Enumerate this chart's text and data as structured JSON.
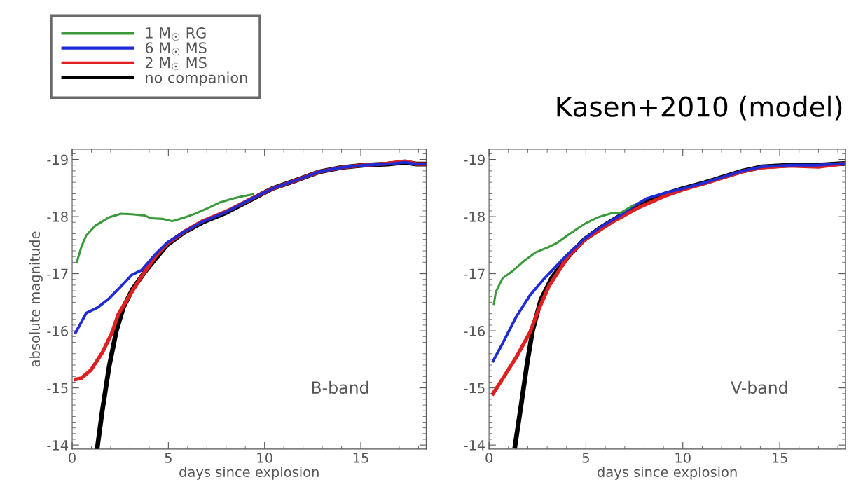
{
  "chart_data": [
    {
      "type": "line",
      "xlabel": "days since explosion",
      "ylabel": "absolute magnitude",
      "annotations": [
        "B-band"
      ],
      "xlim": [
        0,
        18.4
      ],
      "ylim": [
        -13.93,
        -19.18
      ],
      "xticks": [
        0,
        5,
        10,
        15
      ],
      "yticks": [
        -19,
        -18,
        -17,
        -16,
        -15,
        -14
      ],
      "legend": "top left",
      "grid": false,
      "series": [
        {
          "name": "1 M$_{☉}$ RG",
          "color": "#3a9a3a",
          "x": [
            0.24,
            0.48,
            0.73,
            1.2,
            1.93,
            2.54,
            3.1,
            3.75,
            4.1,
            4.7,
            5.2,
            5.8,
            6.3,
            7.0,
            7.7,
            8.3,
            8.8,
            9.4
          ],
          "values": [
            -17.2,
            -17.47,
            -17.67,
            -17.84,
            -17.99,
            -18.05,
            -18.04,
            -18.02,
            -17.97,
            -17.96,
            -17.92,
            -17.98,
            -18.04,
            -18.14,
            -18.25,
            -18.31,
            -18.35,
            -18.39
          ]
        },
        {
          "name": "6 M$_{☉}$ MS",
          "color": "#1f2bd6",
          "x": [
            0.18,
            0.36,
            0.73,
            1.33,
            1.93,
            2.54,
            3.1,
            3.6,
            4.35,
            4.95,
            5.8,
            6.77,
            8.0,
            9.2,
            10.4,
            11.6,
            12.8,
            14.0,
            15.2,
            16.4,
            17.3,
            17.9,
            18.4
          ],
          "values": [
            -15.97,
            -16.08,
            -16.31,
            -16.41,
            -16.57,
            -16.78,
            -16.98,
            -17.06,
            -17.35,
            -17.55,
            -17.73,
            -17.91,
            -18.08,
            -18.29,
            -18.49,
            -18.63,
            -18.78,
            -18.86,
            -18.9,
            -18.92,
            -18.95,
            -18.92,
            -18.92
          ]
        },
        {
          "name": "2 M$_{☉}$ MS",
          "color": "#e02020",
          "x": [
            0.18,
            0.48,
            0.97,
            1.57,
            2.06,
            2.4,
            2.9,
            3.5,
            4.35,
            4.95,
            5.8,
            6.77,
            8.0,
            9.2,
            10.4,
            11.6,
            12.8,
            14.0,
            15.2,
            16.4,
            17.3,
            17.9,
            18.4
          ],
          "values": [
            -15.15,
            -15.17,
            -15.31,
            -15.62,
            -15.96,
            -16.29,
            -16.57,
            -16.9,
            -17.31,
            -17.53,
            -17.73,
            -17.92,
            -18.09,
            -18.29,
            -18.49,
            -18.63,
            -18.78,
            -18.86,
            -18.9,
            -18.93,
            -18.97,
            -18.92,
            -18.92
          ]
        },
        {
          "name": "no companion",
          "color": "#000000",
          "x": [
            1.31,
            1.57,
            1.93,
            2.3,
            2.66,
            3.14,
            3.75,
            4.35,
            4.95,
            5.8,
            6.77,
            8.0,
            9.2,
            10.4,
            11.6,
            12.8,
            14.0,
            15.2,
            16.4,
            17.3,
            17.9,
            18.4
          ],
          "values": [
            -13.96,
            -14.61,
            -15.39,
            -16.0,
            -16.41,
            -16.73,
            -17.02,
            -17.27,
            -17.51,
            -17.72,
            -17.9,
            -18.07,
            -18.28,
            -18.49,
            -18.63,
            -18.78,
            -18.86,
            -18.9,
            -18.92,
            -18.95,
            -18.92,
            -18.92
          ]
        }
      ]
    },
    {
      "type": "line",
      "title": "Kasen+2010 (model)",
      "xlabel": "days since explosion",
      "annotations": [
        "V-band"
      ],
      "xlim": [
        0,
        18.4
      ],
      "ylim": [
        -13.93,
        -19.18
      ],
      "xticks": [
        0,
        5,
        10,
        15
      ],
      "yticks": [
        -19,
        -18,
        -17,
        -16,
        -15,
        -14
      ],
      "grid": false,
      "series": [
        {
          "color": "#3a9a3a",
          "x": [
            0.25,
            0.35,
            0.7,
            1.27,
            1.83,
            2.39,
            3.09,
            3.52,
            4.08,
            4.92,
            5.63,
            6.33,
            6.75,
            7.45
          ],
          "values": [
            -16.47,
            -16.68,
            -16.92,
            -17.06,
            -17.23,
            -17.37,
            -17.47,
            -17.54,
            -17.68,
            -17.87,
            -17.99,
            -18.06,
            -18.06,
            -18.2
          ]
        },
        {
          "color": "#1f2bd6",
          "x": [
            0.21,
            0.7,
            1.41,
            2.11,
            2.81,
            3.38,
            4.08,
            4.92,
            5.77,
            6.61,
            7.45,
            8.16,
            9.14,
            10.0,
            11.1,
            11.95,
            13.1,
            14.06,
            15.5,
            16.9,
            18.35
          ],
          "values": [
            -15.47,
            -15.78,
            -16.25,
            -16.62,
            -16.9,
            -17.1,
            -17.35,
            -17.61,
            -17.82,
            -17.99,
            -18.18,
            -18.32,
            -18.42,
            -18.49,
            -18.59,
            -18.68,
            -18.8,
            -18.87,
            -18.9,
            -18.9,
            -18.93
          ]
        },
        {
          "color": "#e02020",
          "x": [
            0.21,
            0.7,
            1.41,
            2.11,
            2.53,
            3.09,
            4.08,
            4.92,
            6.33,
            7.73,
            9.14,
            10.0,
            11.1,
            11.95,
            13.1,
            14.06,
            15.5,
            17.0,
            18.35
          ],
          "values": [
            -14.9,
            -15.16,
            -15.54,
            -15.97,
            -16.35,
            -16.78,
            -17.3,
            -17.59,
            -17.9,
            -18.16,
            -18.37,
            -18.47,
            -18.58,
            -18.67,
            -18.79,
            -18.86,
            -18.89,
            -18.87,
            -18.93
          ]
        },
        {
          "color": "#000000",
          "x": [
            1.34,
            1.69,
            1.97,
            2.25,
            2.67,
            3.23,
            4.08,
            4.92,
            5.77,
            6.61,
            7.45,
            8.16,
            9.14,
            10.0,
            11.1,
            11.95,
            13.1,
            14.06,
            15.5,
            16.9,
            18.35
          ],
          "values": [
            -13.98,
            -14.78,
            -15.44,
            -16.01,
            -16.54,
            -16.92,
            -17.3,
            -17.6,
            -17.81,
            -17.98,
            -18.15,
            -18.28,
            -18.4,
            -18.49,
            -18.59,
            -18.68,
            -18.8,
            -18.87,
            -18.9,
            -18.9,
            -18.93
          ]
        }
      ]
    }
  ]
}
